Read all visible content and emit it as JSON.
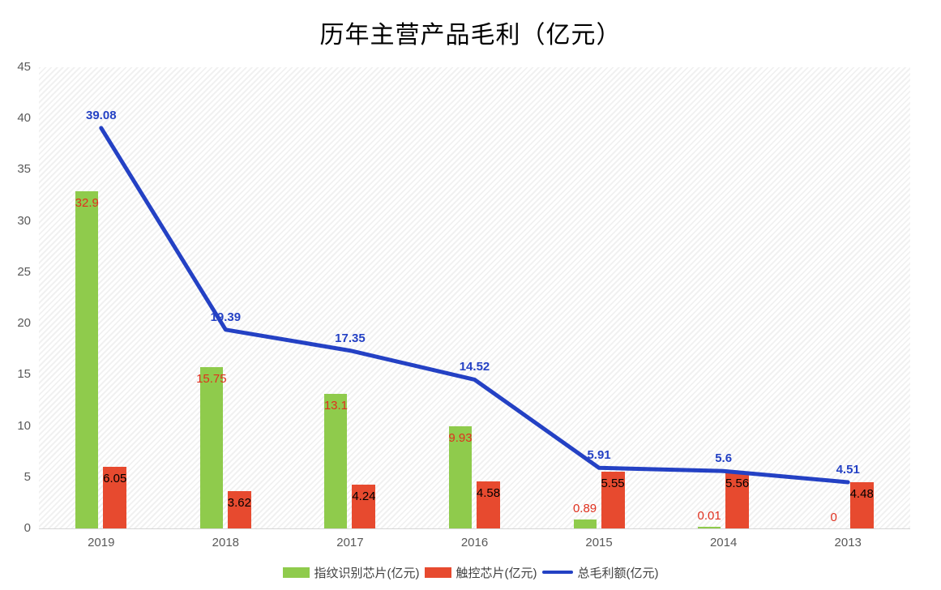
{
  "chart_data": {
    "type": "bar",
    "subtype": "bar+line-combo",
    "title": "历年主营产品毛利（亿元）",
    "categories": [
      "2019",
      "2018",
      "2017",
      "2016",
      "2015",
      "2014",
      "2013"
    ],
    "series": [
      {
        "name": "指纹识别芯片(亿元)",
        "type": "bar",
        "color": "#8FCB4C",
        "label_color": "#E0301E",
        "values": [
          32.9,
          15.75,
          13.1,
          9.93,
          0.89,
          0.01,
          0
        ]
      },
      {
        "name": "触控芯片(亿元)",
        "type": "bar",
        "color": "#E74A2F",
        "label_color": "#000000",
        "values": [
          6.05,
          3.62,
          4.24,
          4.58,
          5.55,
          5.56,
          4.48
        ]
      },
      {
        "name": "总毛利额(亿元)",
        "type": "line",
        "color": "#2441C4",
        "label_color": "#2441C4",
        "values": [
          39.08,
          19.39,
          17.35,
          14.52,
          5.91,
          5.6,
          4.51
        ]
      }
    ],
    "ylim": [
      0,
      45
    ],
    "yticks": [
      0,
      5,
      10,
      15,
      20,
      25,
      30,
      35,
      40,
      45
    ],
    "xlabel": "",
    "ylabel": "",
    "grid": false,
    "background_pattern": "diagonal-hatch",
    "legend_position": "bottom",
    "axis_text_color": "#595959"
  }
}
